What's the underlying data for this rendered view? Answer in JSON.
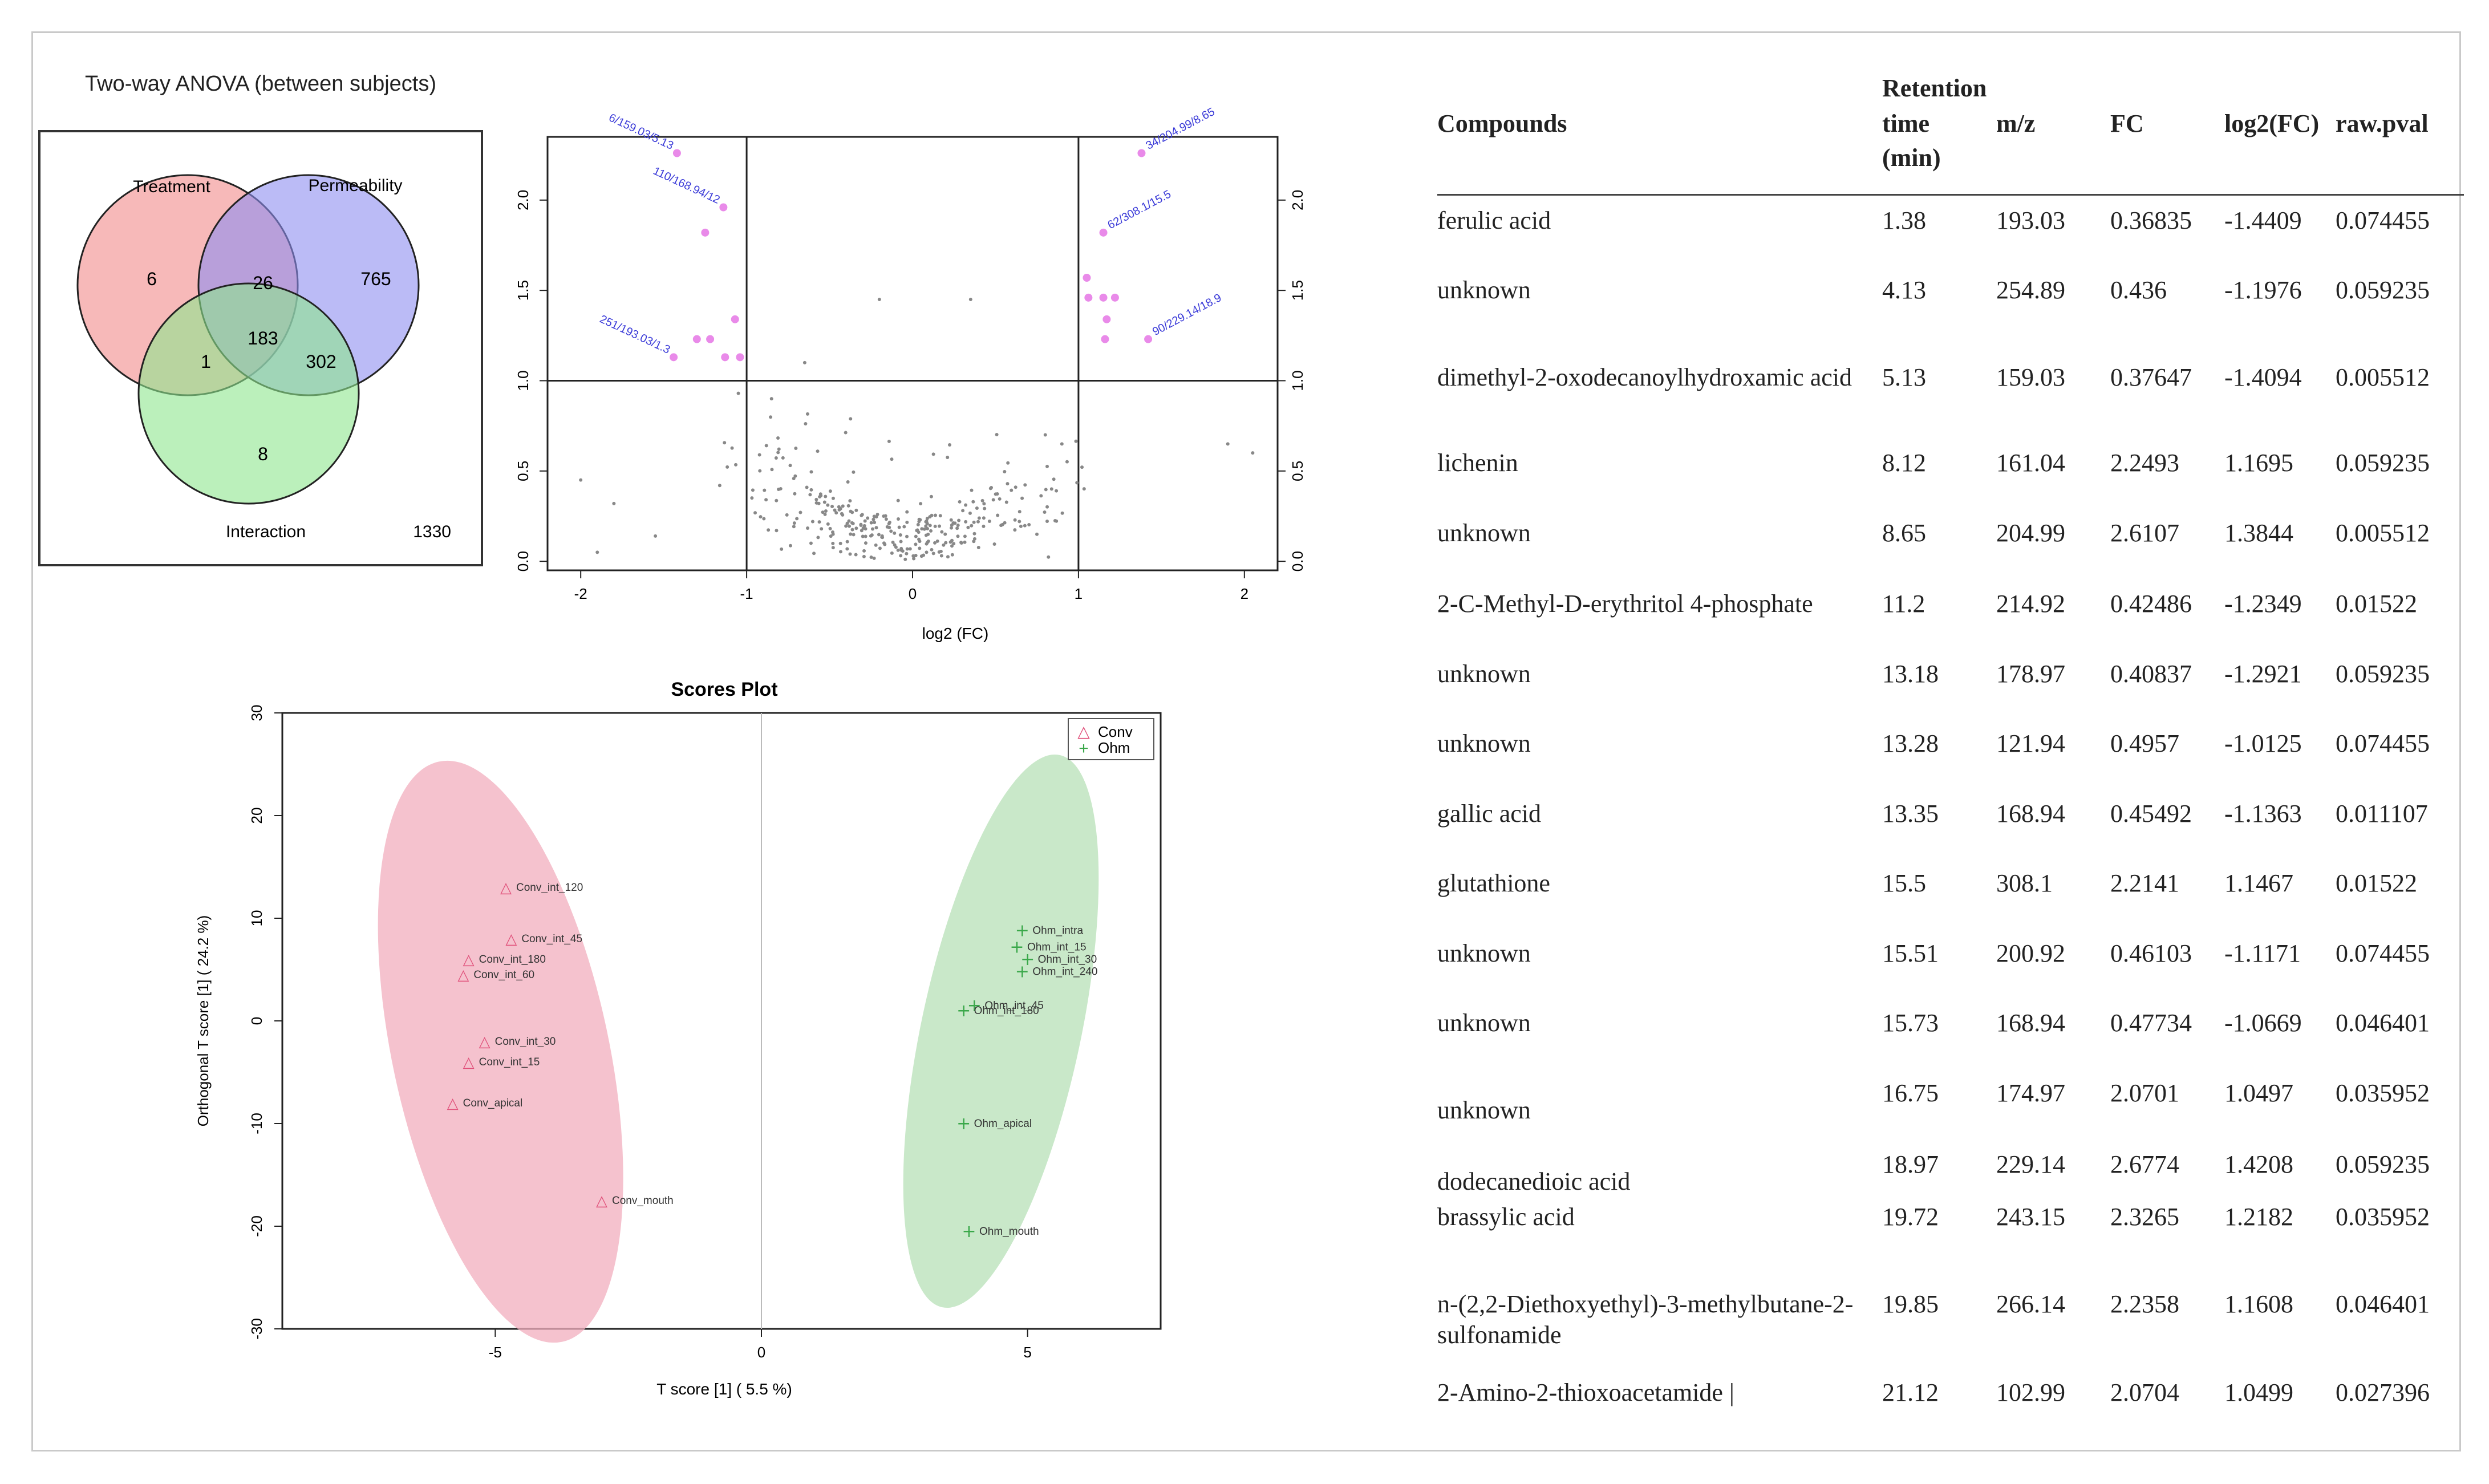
{
  "venn": {
    "title": "Two-way ANOVA (between subjects)",
    "sets": [
      {
        "name": "Treatment",
        "color": "#f28b8b"
      },
      {
        "name": "Permeability",
        "color": "#8d8df0"
      },
      {
        "name": "Interaction",
        "color": "#8ee68e"
      }
    ],
    "counts": {
      "treatment_only": "6",
      "permeability_only": "765",
      "interaction_only": "8",
      "treatment_permeability": "26",
      "treatment_interaction": "1",
      "permeability_interaction": "302",
      "all_three": "183",
      "total": "1330"
    }
  },
  "volcano": {
    "xlabel": "log2 (FC)",
    "x_ticks": [
      "-2",
      "-1",
      "0",
      "1",
      "2"
    ],
    "y_ticks": [
      "0.0",
      "0.5",
      "1.0",
      "1.5",
      "2.0"
    ],
    "labels": [
      "6/159.03/5.13",
      "110/168.94/12",
      "251/193.03/1.3",
      "34/204.99/8.65",
      "62/308.1/15.5",
      "90/229.14/18.9"
    ]
  },
  "scores": {
    "title": "Scores Plot",
    "xlabel": "T score [1] ( 5.5 %)",
    "ylabel": "Orthogonal T score [1] ( 24.2 %)",
    "x_ticks": [
      "-5",
      "0",
      "5"
    ],
    "y_ticks": [
      "30",
      "20",
      "10",
      "0",
      "-10",
      "-20",
      "-30"
    ],
    "legend": [
      "Conv",
      "Ohm"
    ],
    "colors": {
      "conv": "#e0507a",
      "ohm": "#3aa84a",
      "conv_ellipse": "#f2aebd",
      "ohm_ellipse": "#b7e0b7"
    }
  },
  "table": {
    "headers": {
      "compounds": "Compounds",
      "rt_line1": "Retention",
      "rt_line2": "time",
      "rt_line3": "(min)",
      "mz": "m/z",
      "fc": "FC",
      "log2fc": "log2(FC)",
      "pval": "raw.pval"
    },
    "rows": [
      {
        "c": "ferulic acid",
        "rt": "1.38",
        "mz": "193.03",
        "fc": "0.36835",
        "l": "-1.4409",
        "p": "0.074455"
      },
      {
        "c": "unknown",
        "rt": "4.13",
        "mz": "254.89",
        "fc": "0.436",
        "l": "-1.1976",
        "p": "0.059235"
      },
      {
        "c": "dimethyl-2-oxodecanoylhydroxamic acid",
        "rt": "5.13",
        "mz": "159.03",
        "fc": "0.37647",
        "l": "-1.4094",
        "p": "0.005512"
      },
      {
        "c": "lichenin",
        "rt": "8.12",
        "mz": "161.04",
        "fc": "2.2493",
        "l": "1.1695",
        "p": "0.059235"
      },
      {
        "c": "unknown",
        "rt": "8.65",
        "mz": "204.99",
        "fc": "2.6107",
        "l": "1.3844",
        "p": "0.005512"
      },
      {
        "c": "2-C-Methyl-D-erythritol 4-phosphate",
        "rt": "11.2",
        "mz": "214.92",
        "fc": "0.42486",
        "l": "-1.2349",
        "p": "0.01522"
      },
      {
        "c": "unknown",
        "rt": "13.18",
        "mz": "178.97",
        "fc": "0.40837",
        "l": "-1.2921",
        "p": "0.059235"
      },
      {
        "c": "unknown",
        "rt": "13.28",
        "mz": "121.94",
        "fc": "0.4957",
        "l": "-1.0125",
        "p": "0.074455"
      },
      {
        "c": "gallic acid",
        "rt": "13.35",
        "mz": "168.94",
        "fc": "0.45492",
        "l": "-1.1363",
        "p": "0.011107"
      },
      {
        "c": "glutathione",
        "rt": "15.5",
        "mz": "308.1",
        "fc": "2.2141",
        "l": "1.1467",
        "p": "0.01522"
      },
      {
        "c": "unknown",
        "rt": "15.51",
        "mz": "200.92",
        "fc": "0.46103",
        "l": "-1.1171",
        "p": "0.074455"
      },
      {
        "c": "unknown",
        "rt": "15.73",
        "mz": "168.94",
        "fc": "0.47734",
        "l": "-1.0669",
        "p": "0.046401"
      },
      {
        "c": "unknown",
        "rt": "16.75",
        "mz": "174.97",
        "fc": "2.0701",
        "l": "1.0497",
        "p": "0.035952"
      },
      {
        "c": "dodecanedioic acid",
        "rt": "18.97",
        "mz": "229.14",
        "fc": "2.6774",
        "l": "1.4208",
        "p": "0.059235"
      },
      {
        "c": "brassylic acid",
        "rt": "19.72",
        "mz": "243.15",
        "fc": "2.3265",
        "l": "1.2182",
        "p": "0.035952"
      },
      {
        "c": "n-(2,2-Diethoxyethyl)-3-methylbutane-2-sulfonamide",
        "rt": "19.85",
        "mz": "266.14",
        "fc": "2.2358",
        "l": "1.1608",
        "p": "0.046401"
      },
      {
        "c": "2-Amino-2-thioxoacetamide |",
        "rt": "21.12",
        "mz": "102.99",
        "fc": "2.0704",
        "l": "1.0499",
        "p": "0.027396"
      }
    ]
  },
  "chart_data": [
    {
      "type": "venn",
      "title": "Two-way ANOVA (between subjects)",
      "sets": [
        "Treatment",
        "Permeability",
        "Interaction"
      ],
      "regions": {
        "Treatment": 6,
        "Permeability": 765,
        "Interaction": 8,
        "Treatment&Permeability": 26,
        "Treatment&Interaction": 1,
        "Permeability&Interaction": 302,
        "Treatment&Permeability&Interaction": 183
      },
      "outside": 1330
    },
    {
      "type": "scatter",
      "xlabel": "log2 (FC)",
      "xlim": [
        -2.2,
        2.2
      ],
      "ylim": [
        -0.05,
        2.35
      ],
      "thresholds": {
        "x": [
          -1,
          1
        ],
        "y": 1.0
      },
      "significant_points": [
        {
          "x": -1.42,
          "y": 2.26,
          "label": "6/159.03/5.13"
        },
        {
          "x": -1.14,
          "y": 1.96,
          "label": "110/168.94/12"
        },
        {
          "x": -1.25,
          "y": 1.82
        },
        {
          "x": -1.44,
          "y": 1.13,
          "label": "251/193.03/1.3"
        },
        {
          "x": -1.3,
          "y": 1.23
        },
        {
          "x": -1.22,
          "y": 1.23
        },
        {
          "x": -1.13,
          "y": 1.13
        },
        {
          "x": -1.07,
          "y": 1.34
        },
        {
          "x": -1.04,
          "y": 1.13
        },
        {
          "x": 1.38,
          "y": 2.26,
          "label": "34/204.99/8.65"
        },
        {
          "x": 1.15,
          "y": 1.82,
          "label": "62/308.1/15.5"
        },
        {
          "x": 1.42,
          "y": 1.23,
          "label": "90/229.14/18.9"
        },
        {
          "x": 1.05,
          "y": 1.57
        },
        {
          "x": 1.06,
          "y": 1.46
        },
        {
          "x": 1.15,
          "y": 1.46
        },
        {
          "x": 1.22,
          "y": 1.46
        },
        {
          "x": 1.17,
          "y": 1.34
        },
        {
          "x": 1.16,
          "y": 1.23
        }
      ]
    },
    {
      "type": "scatter",
      "title": "Scores Plot",
      "xlabel": "T score [1] ( 5.5 %)",
      "ylabel": "Orthogonal T score [1] ( 24.2 %)",
      "xlim": [
        -9,
        7.5
      ],
      "ylim": [
        -30,
        30
      ],
      "series": [
        {
          "name": "Conv",
          "points": [
            {
              "label": "Conv_int_120",
              "x": -4.8,
              "y": 13
            },
            {
              "label": "Conv_int_45",
              "x": -4.7,
              "y": 8
            },
            {
              "label": "Conv_int_180",
              "x": -5.5,
              "y": 6
            },
            {
              "label": "Conv_int_60",
              "x": -5.6,
              "y": 4.5
            },
            {
              "label": "Conv_int_30",
              "x": -5.2,
              "y": -2
            },
            {
              "label": "Conv_int_15",
              "x": -5.5,
              "y": -4
            },
            {
              "label": "Conv_apical",
              "x": -5.8,
              "y": -8
            },
            {
              "label": "Conv_mouth",
              "x": -3.0,
              "y": -17.5
            }
          ]
        },
        {
          "name": "Ohm",
          "points": [
            {
              "label": "Ohm_intra",
              "x": 4.9,
              "y": 8.8
            },
            {
              "label": "Ohm_int_15",
              "x": 4.8,
              "y": 7.2
            },
            {
              "label": "Ohm_int_30",
              "x": 5.0,
              "y": 6.0
            },
            {
              "label": "Ohm_int_240",
              "x": 4.9,
              "y": 4.8
            },
            {
              "label": "Ohm_int_45",
              "x": 4.0,
              "y": 1.5
            },
            {
              "label": "Ohm_int_180",
              "x": 3.8,
              "y": 1.0
            },
            {
              "label": "Ohm_apical",
              "x": 3.8,
              "y": -10
            },
            {
              "label": "Ohm_mouth",
              "x": 3.9,
              "y": -20.5
            }
          ]
        }
      ]
    },
    {
      "type": "table",
      "columns": [
        "Compounds",
        "Retention time (min)",
        "m/z",
        "FC",
        "log2(FC)",
        "raw.pval"
      ]
    }
  ]
}
